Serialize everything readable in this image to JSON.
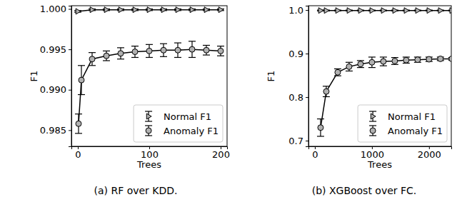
{
  "chart_data": [
    {
      "type": "line",
      "title": "(a) RF over KDD.",
      "x_label": "Trees",
      "y_label": "F1",
      "xlim": [
        -9,
        209
      ],
      "ylim": [
        0.983,
        1.0004
      ],
      "xticks": [
        0,
        100,
        200
      ],
      "yticks": [
        0.985,
        {
          "value": 0.99,
          "label": "0.990"
        },
        0.995,
        {
          "value": 1,
          "label": "1.000"
        }
      ],
      "legend": "lower right",
      "series": [
        {
          "name": "Normal F1",
          "color": "#000000",
          "marker": "triangle",
          "x": [
            0,
            20,
            40,
            60,
            80,
            100,
            120,
            140,
            160,
            180,
            200
          ],
          "values": [
            0.9997,
            0.9999,
            0.9999,
            0.9999,
            0.9999,
            0.9999,
            0.9999,
            0.9999,
            0.9999,
            0.9999,
            0.9999
          ],
          "errors": [
            0.0001,
            0.0001,
            0.0001,
            0.0001,
            0.0001,
            0.0001,
            0.0001,
            0.0001,
            0.0001,
            0.0001,
            0.0001
          ]
        },
        {
          "name": "Anomaly F1",
          "color": "#000000",
          "marker": "circle",
          "x": [
            1,
            5,
            20,
            40,
            60,
            80,
            100,
            120,
            140,
            160,
            180,
            200
          ],
          "values": [
            0.9858,
            0.9912,
            0.9938,
            0.9942,
            0.9945,
            0.9947,
            0.9948,
            0.9949,
            0.9949,
            0.995,
            0.9949,
            0.9948
          ],
          "errors": [
            0.0012,
            0.0018,
            0.0008,
            0.0006,
            0.0007,
            0.0007,
            0.0008,
            0.0008,
            0.0009,
            0.001,
            0.0006,
            0.0006
          ]
        }
      ]
    },
    {
      "type": "line",
      "title": "(b) XGBoost over FC.",
      "x_label": "Trees",
      "y_label": "F1",
      "xlim": [
        -112,
        2390
      ],
      "ylim": [
        0.687,
        1.01
      ],
      "xticks": [
        0,
        1000,
        2000
      ],
      "yticks": [
        0.7,
        0.8,
        0.9,
        {
          "value": 1,
          "label": "1.0"
        }
      ],
      "legend": "lower right",
      "series": [
        {
          "name": "Normal F1",
          "color": "#000000",
          "marker": "triangle",
          "x": [
            100,
            200,
            400,
            600,
            800,
            1000,
            1200,
            1400,
            1600,
            1800,
            2000,
            2200,
            2400
          ],
          "values": [
            0.999,
            0.999,
            0.999,
            0.999,
            0.999,
            0.999,
            0.999,
            0.999,
            0.999,
            0.999,
            0.999,
            0.999,
            0.999
          ],
          "errors": [
            0.001,
            0.001,
            0.001,
            0.001,
            0.001,
            0.001,
            0.001,
            0.001,
            0.001,
            0.001,
            0.001,
            0.001,
            0.001
          ]
        },
        {
          "name": "Anomaly F1",
          "color": "#000000",
          "marker": "circle",
          "x": [
            100,
            200,
            400,
            600,
            800,
            1000,
            1200,
            1400,
            1600,
            1800,
            2000,
            2200,
            2400
          ],
          "values": [
            0.73,
            0.813,
            0.857,
            0.87,
            0.876,
            0.88,
            0.882,
            0.883,
            0.885,
            0.886,
            0.887,
            0.888,
            0.888
          ],
          "errors": [
            0.02,
            0.012,
            0.008,
            0.01,
            0.008,
            0.012,
            0.01,
            0.008,
            0.007,
            0.006,
            0.005,
            0.004,
            0.003
          ]
        }
      ]
    }
  ]
}
